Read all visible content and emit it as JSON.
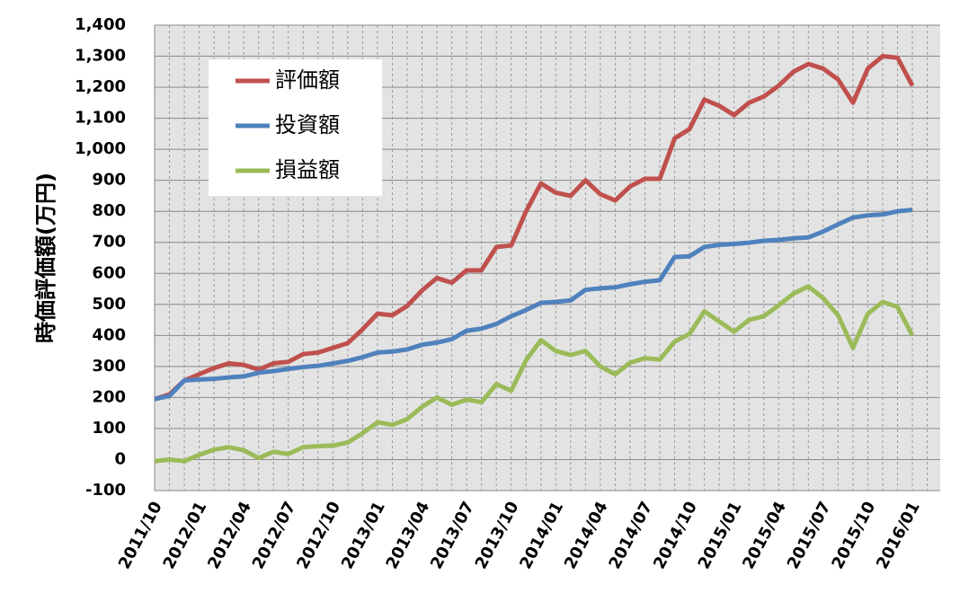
{
  "chart_data": {
    "type": "line",
    "y_label": "時価評価額(万円)",
    "categories": [
      "2011/10",
      null,
      null,
      "2012/01",
      null,
      null,
      "2012/04",
      null,
      null,
      "2012/07",
      null,
      null,
      "2012/10",
      null,
      null,
      "2013/01",
      null,
      null,
      "2013/04",
      null,
      null,
      "2013/07",
      null,
      null,
      "2013/10",
      null,
      null,
      "2014/01",
      null,
      null,
      "2014/04",
      null,
      null,
      "2014/07",
      null,
      null,
      "2014/10",
      null,
      null,
      "2015/01",
      null,
      null,
      "2015/04",
      null,
      null,
      "2015/07",
      null,
      null,
      "2015/10",
      null,
      null,
      "2016/01"
    ],
    "series": [
      {
        "name": "評価額",
        "color": "#c0504d",
        "values": [
          195,
          210,
          255,
          275,
          295,
          310,
          305,
          290,
          310,
          315,
          340,
          345,
          360,
          375,
          420,
          470,
          465,
          495,
          545,
          585,
          570,
          610,
          610,
          685,
          690,
          800,
          890,
          860,
          850,
          900,
          855,
          835,
          880,
          905,
          905,
          1035,
          1065,
          1160,
          1140,
          1110,
          1150,
          1170,
          1205,
          1250,
          1275,
          1260,
          1225,
          1150,
          1260,
          1300,
          1295,
          1205
        ]
      },
      {
        "name": "投資額",
        "color": "#4f81bd",
        "values": [
          195,
          205,
          255,
          258,
          260,
          265,
          268,
          280,
          285,
          292,
          298,
          302,
          310,
          318,
          330,
          345,
          348,
          355,
          370,
          377,
          388,
          415,
          422,
          437,
          462,
          482,
          505,
          508,
          513,
          547,
          552,
          555,
          565,
          573,
          578,
          653,
          655,
          685,
          692,
          695,
          699,
          705,
          708,
          713,
          716,
          735,
          758,
          780,
          787,
          790,
          800,
          805
        ]
      },
      {
        "name": "損益額",
        "color": "#9bbb59",
        "values": [
          -5,
          0,
          -5,
          15,
          32,
          40,
          30,
          5,
          25,
          18,
          40,
          43,
          45,
          55,
          85,
          120,
          112,
          130,
          170,
          200,
          177,
          193,
          185,
          243,
          222,
          320,
          385,
          350,
          337,
          350,
          300,
          275,
          312,
          327,
          322,
          380,
          405,
          478,
          445,
          412,
          450,
          462,
          497,
          535,
          558,
          520,
          465,
          360,
          470,
          508,
          492,
          400
        ]
      }
    ],
    "ylim": [
      -100,
      1400
    ],
    "yticks": [
      -100,
      0,
      100,
      200,
      300,
      400,
      500,
      600,
      700,
      800,
      900,
      {
        "value": 1000,
        "label": "1,000"
      },
      {
        "value": 1100,
        "label": "1,100"
      },
      {
        "value": 1200,
        "label": "1,200"
      },
      {
        "value": 1300,
        "label": "1,300"
      },
      {
        "value": 1400,
        "label": "1,400"
      }
    ],
    "grid": true
  }
}
